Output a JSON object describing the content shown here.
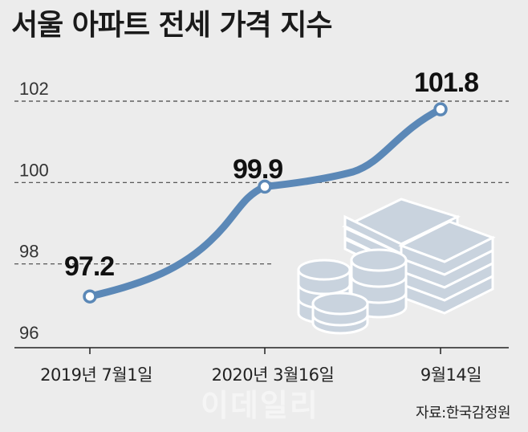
{
  "title": "서울 아파트 전세 가격 지수",
  "source": "자료:한국감정원",
  "watermark": "이데일리",
  "colors": {
    "line": "#5b88b7",
    "background": "#ececec",
    "coins": "#c9d3de"
  },
  "chart_data": {
    "type": "line",
    "title": "서울 아파트 전세 가격 지수",
    "ylim": [
      96,
      102
    ],
    "yticks": [
      96,
      98,
      100,
      102
    ],
    "grid": "dashed horizontal",
    "points": [
      {
        "x": "2019년 7월1일",
        "y": 97.2,
        "label": "97.2"
      },
      {
        "x": "2020년 3월16일",
        "y": 99.9,
        "label": "99.9"
      },
      {
        "x": "9월14일",
        "y": 101.8,
        "label": "101.8"
      }
    ]
  }
}
